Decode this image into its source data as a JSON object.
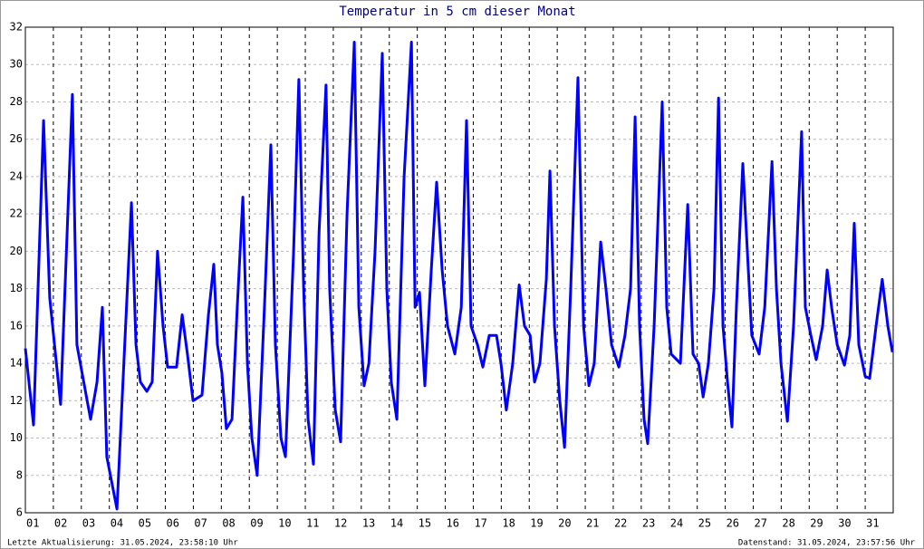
{
  "chart_data": {
    "type": "line",
    "title": "Temperatur in 5 cm dieser Monat",
    "footer_left": "Letzte Aktualisierung: 31.05.2024, 23:58:10 Uhr",
    "footer_right": "Datenstand: 31.05.2024, 23:57:56 Uhr",
    "x": [
      1.0,
      1.29,
      1.65,
      1.87,
      2.26,
      2.68,
      2.84,
      3.33,
      3.56,
      3.75,
      3.91,
      4.27,
      4.79,
      4.95,
      5.11,
      5.34,
      5.53,
      5.72,
      5.92,
      6.08,
      6.4,
      6.6,
      6.79,
      6.99,
      7.31,
      7.54,
      7.73,
      7.86,
      8.02,
      8.18,
      8.38,
      8.57,
      8.77,
      8.93,
      9.09,
      9.28,
      9.54,
      9.77,
      9.93,
      10.13,
      10.29,
      10.58,
      10.77,
      10.94,
      11.1,
      11.29,
      11.49,
      11.74,
      11.87,
      12.07,
      12.26,
      12.49,
      12.75,
      12.91,
      13.1,
      13.27,
      13.49,
      13.75,
      13.91,
      14.07,
      14.27,
      14.53,
      14.79,
      14.92,
      15.08,
      15.27,
      15.5,
      15.69,
      15.89,
      16.08,
      16.34,
      16.57,
      16.76,
      16.92,
      17.15,
      17.34,
      17.57,
      17.83,
      17.99,
      18.18,
      18.41,
      18.64,
      18.83,
      19.03,
      19.19,
      19.38,
      19.61,
      19.74,
      19.9,
      20.09,
      20.26,
      20.48,
      20.74,
      20.94,
      21.13,
      21.32,
      21.55,
      21.74,
      21.94,
      22.2,
      22.42,
      22.62,
      22.78,
      22.94,
      23.1,
      23.23,
      23.46,
      23.75,
      23.91,
      24.07,
      24.4,
      24.66,
      24.85,
      25.05,
      25.21,
      25.4,
      25.6,
      25.76,
      25.92,
      26.08,
      26.24,
      26.4,
      26.63,
      26.79,
      26.95,
      27.21,
      27.41,
      27.67,
      27.83,
      27.99,
      28.22,
      28.44,
      28.73,
      28.86,
      29.06,
      29.25,
      29.48,
      29.64,
      29.8,
      30.0,
      30.26,
      30.45,
      30.61,
      30.77,
      31.0,
      31.16,
      31.39,
      31.61,
      31.81,
      31.97
    ],
    "series": [
      {
        "name": "Temperatur",
        "color": "#0000ff",
        "values": [
          14.8,
          10.7,
          27,
          17.5,
          11.8,
          28.4,
          15,
          11,
          13,
          17,
          9,
          6.2,
          22.6,
          15,
          13,
          12.5,
          13,
          20,
          16,
          13.8,
          13.8,
          16.6,
          14.5,
          12,
          12.3,
          16.6,
          19.3,
          15,
          13.5,
          10.5,
          11,
          17,
          22.9,
          14,
          10,
          8,
          17,
          25.7,
          15,
          10,
          9,
          20,
          29.2,
          18,
          11,
          8.6,
          21,
          28.9,
          18,
          11.5,
          9.8,
          22,
          31.2,
          17,
          12.8,
          14,
          20,
          30.6,
          18,
          13,
          11,
          24,
          31.2,
          17,
          17.8,
          12.8,
          19,
          23.7,
          19,
          16,
          14.5,
          17,
          27,
          16,
          15,
          13.8,
          15.5,
          15.5,
          14,
          11.5,
          14,
          18.2,
          16,
          15.5,
          13,
          14,
          18.5,
          24.3,
          16,
          12,
          9.5,
          18,
          29.3,
          16,
          12.8,
          14,
          20.5,
          18,
          15,
          13.8,
          15.5,
          18,
          27.2,
          16,
          11,
          9.7,
          16,
          28,
          17,
          14.5,
          14,
          22.5,
          14.5,
          14,
          12.2,
          14,
          18,
          28.2,
          16,
          13,
          10.6,
          17,
          24.7,
          20,
          15.5,
          14.5,
          17,
          24.8,
          18,
          14,
          10.9,
          16,
          26.4,
          17,
          15.5,
          14.2,
          16,
          19,
          17,
          15,
          13.9,
          15.5,
          21.5,
          15,
          13.3,
          13.2,
          16,
          18.5,
          16,
          14.6
        ]
      }
    ],
    "xlim": [
      1,
      32
    ],
    "xticks": [
      {
        "value": 1,
        "label": "01"
      },
      {
        "value": 2,
        "label": "02"
      },
      {
        "value": 3,
        "label": "03"
      },
      {
        "value": 4,
        "label": "04"
      },
      {
        "value": 5,
        "label": "05"
      },
      {
        "value": 6,
        "label": "06"
      },
      {
        "value": 7,
        "label": "07"
      },
      {
        "value": 8,
        "label": "08"
      },
      {
        "value": 9,
        "label": "09"
      },
      10,
      11,
      12,
      13,
      14,
      15,
      16,
      17,
      18,
      19,
      20,
      21,
      22,
      23,
      24,
      25,
      26,
      27,
      28,
      29,
      30,
      31
    ],
    "ylim": [
      6,
      32
    ],
    "yticks": [
      6,
      8,
      10,
      12,
      14,
      16,
      18,
      20,
      22,
      24,
      26,
      28,
      30,
      32
    ],
    "grid": true
  }
}
